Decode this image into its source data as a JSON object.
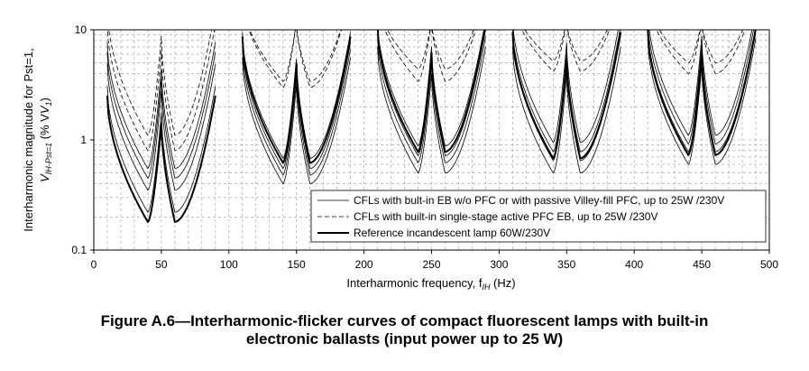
{
  "chart_data": {
    "type": "line",
    "xlabel": "Interharmonic frequency, f",
    "xlabel_sub": "IH",
    "xlabel_unit": " (Hz)",
    "ylabel_line1": "Interharmonic magnitude for Pst=1,",
    "ylabel_line2_v": "V",
    "ylabel_line2_sub": "IH-Pst=1",
    "ylabel_line2_rest": " (% V",
    "ylabel_line2_sub2": "1",
    "ylabel_line2_end": ")",
    "x_ticks": [
      "0",
      "50",
      "100",
      "150",
      "200",
      "250",
      "300",
      "350",
      "400",
      "450",
      "500"
    ],
    "y_ticks": [
      "0.1",
      "1",
      "10"
    ],
    "xlim": [
      0,
      500
    ],
    "ylim": [
      0.1,
      10
    ],
    "yscale": "log",
    "grid": "dashed, major and minor",
    "legend_position": "bottom-right",
    "legend": [
      {
        "label": "CFLs with bult-in EB w/o PFC or with passive Villey-fill PFC, up to 25W /230V",
        "style": "thin solid"
      },
      {
        "label": "CFLs with built-in single-stage active PFC EB, up to 25W /230V",
        "style": "dashed"
      },
      {
        "label": "Reference incandescent lamp 60W/230V",
        "style": "thick solid"
      }
    ],
    "series": [
      {
        "group": "reference",
        "style": "thick solid",
        "notch_minima": [
          0.18,
          0.62,
          0.78,
          0.68,
          0.73
        ],
        "harmonic_peaks": [
          50,
          150,
          250,
          350,
          450
        ]
      },
      {
        "group": "cfl_no_pfc",
        "style": "thin solid",
        "notch_minima": [
          0.22,
          0.4,
          0.5,
          0.5,
          0.6
        ]
      },
      {
        "group": "cfl_no_pfc",
        "style": "thin solid",
        "notch_minima": [
          0.35,
          0.48,
          0.62,
          0.65,
          0.78
        ]
      },
      {
        "group": "cfl_no_pfc",
        "style": "thin solid",
        "notch_minima": [
          0.45,
          0.55,
          0.72,
          0.78,
          0.92
        ]
      },
      {
        "group": "cfl_no_pfc",
        "style": "thin solid",
        "notch_minima": [
          0.55,
          0.68,
          0.88,
          0.95,
          1.1
        ]
      },
      {
        "group": "cfl_active_pfc",
        "style": "dashed",
        "notch_minima": [
          0.8,
          3.0,
          3.4,
          4.2,
          4.0
        ]
      },
      {
        "group": "cfl_active_pfc",
        "style": "dashed",
        "notch_minima": [
          1.1,
          3.4,
          4.4,
          5.2,
          5.0
        ]
      }
    ]
  },
  "caption_line1": "Figure A.6—Interharmonic-flicker curves of compact fluorescent lamps with built-in",
  "caption_line2": "electronic ballasts (input power up to 25 W)"
}
